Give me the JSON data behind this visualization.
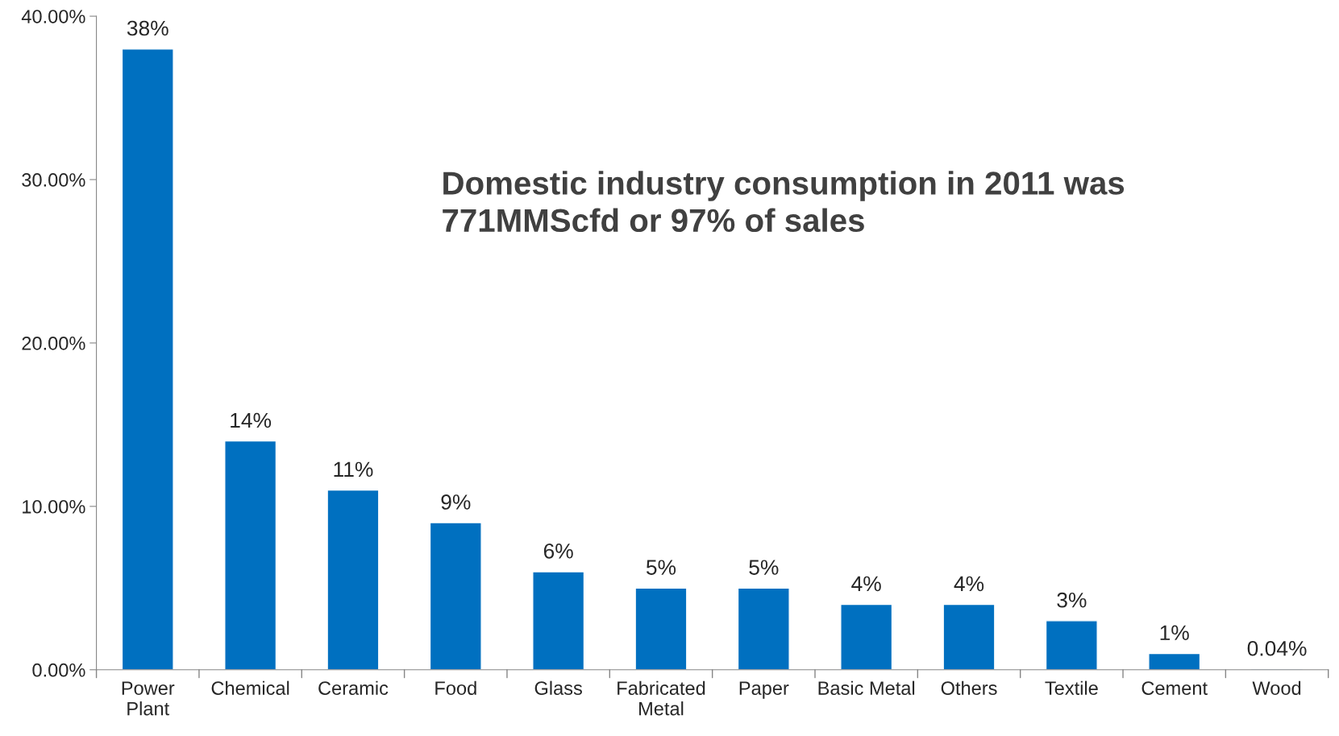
{
  "chart_data": {
    "type": "bar",
    "categories": [
      "Power\nPlant",
      "Chemical",
      "Ceramic",
      "Food",
      "Glass",
      "Fabricated\nMetal",
      "Paper",
      "Basic Metal",
      "Others",
      "Textile",
      "Cement",
      "Wood"
    ],
    "values": [
      38,
      14,
      11,
      9,
      6,
      5,
      5,
      4,
      4,
      3,
      1,
      0.04
    ],
    "value_labels": [
      "38%",
      "14%",
      "11%",
      "9%",
      "6%",
      "5%",
      "5%",
      "4%",
      "4%",
      "3%",
      "1%",
      "0.04%"
    ],
    "color": "#0070c0",
    "ylim": [
      0,
      40
    ],
    "yticks": [
      {
        "value": 0,
        "label": "0.00%"
      },
      {
        "value": 10,
        "label": "10.00%"
      },
      {
        "value": 20,
        "label": "20.00%"
      },
      {
        "value": 30,
        "label": "30.00%"
      },
      {
        "value": 40,
        "label": "40.00%"
      }
    ],
    "grid": false,
    "annotations": [
      "Domestic industry consumption in 2011 was\n771MMScfd or 97% of sales"
    ]
  }
}
